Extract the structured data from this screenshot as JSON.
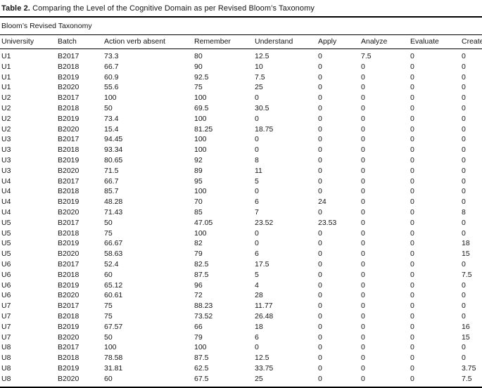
{
  "table": {
    "title_label": "Table 2.",
    "title_text": "Comparing the Level of the Cognitive Domain as per Revised Bloom’s Taxonomy",
    "spanner": "Bloom’s Revised Taxonomy",
    "columns": [
      "University",
      "Batch",
      "Action verb absent",
      "Remember",
      "Understand",
      "Apply",
      "Analyze",
      "Evaluate",
      "Create"
    ],
    "rows": [
      [
        "U1",
        "B2017",
        "73.3",
        "80",
        "12.5",
        "0",
        "7.5",
        "0",
        "0"
      ],
      [
        "U1",
        "B2018",
        "66.7",
        "90",
        "10",
        "0",
        "0",
        "0",
        "0"
      ],
      [
        "U1",
        "B2019",
        "60.9",
        "92.5",
        "7.5",
        "0",
        "0",
        "0",
        "0"
      ],
      [
        "U1",
        "B2020",
        "55.6",
        "75",
        "25",
        "0",
        "0",
        "0",
        "0"
      ],
      [
        "U2",
        "B2017",
        "100",
        "100",
        "0",
        "0",
        "0",
        "0",
        "0"
      ],
      [
        "U2",
        "B2018",
        "50",
        "69.5",
        "30.5",
        "0",
        "0",
        "0",
        "0"
      ],
      [
        "U2",
        "B2019",
        "73.4",
        "100",
        "0",
        "0",
        "0",
        "0",
        "0"
      ],
      [
        "U2",
        "B2020",
        "15.4",
        "81.25",
        "18.75",
        "0",
        "0",
        "0",
        "0"
      ],
      [
        "U3",
        "B2017",
        "94.45",
        "100",
        "0",
        "0",
        "0",
        "0",
        "0"
      ],
      [
        "U3",
        "B2018",
        "93.34",
        "100",
        "0",
        "0",
        "0",
        "0",
        "0"
      ],
      [
        "U3",
        "B2019",
        "80.65",
        "92",
        "8",
        "0",
        "0",
        "0",
        "0"
      ],
      [
        "U3",
        "B2020",
        "71.5",
        "89",
        "11",
        "0",
        "0",
        "0",
        "0"
      ],
      [
        "U4",
        "B2017",
        "66.7",
        "95",
        "5",
        "0",
        "0",
        "0",
        "0"
      ],
      [
        "U4",
        "B2018",
        "85.7",
        "100",
        "0",
        "0",
        "0",
        "0",
        "0"
      ],
      [
        "U4",
        "B2019",
        "48.28",
        "70",
        "6",
        "24",
        "0",
        "0",
        "0"
      ],
      [
        "U4",
        "B2020",
        "71.43",
        "85",
        "7",
        "0",
        "0",
        "0",
        "8"
      ],
      [
        "U5",
        "B2017",
        "50",
        "47.05",
        "23.52",
        "23.53",
        "0",
        "0",
        "0"
      ],
      [
        "U5",
        "B2018",
        "75",
        "100",
        "0",
        "0",
        "0",
        "0",
        "0"
      ],
      [
        "U5",
        "B2019",
        "66.67",
        "82",
        "0",
        "0",
        "0",
        "0",
        "18"
      ],
      [
        "U5",
        "B2020",
        "58.63",
        "79",
        "6",
        "0",
        "0",
        "0",
        "15"
      ],
      [
        "U6",
        "B2017",
        "52.4",
        "82.5",
        "17.5",
        "0",
        "0",
        "0",
        "0"
      ],
      [
        "U6",
        "B2018",
        "60",
        "87.5",
        "5",
        "0",
        "0",
        "0",
        "7.5"
      ],
      [
        "U6",
        "B2019",
        "65.12",
        "96",
        "4",
        "0",
        "0",
        "0",
        "0"
      ],
      [
        "U6",
        "B2020",
        "60.61",
        "72",
        "28",
        "0",
        "0",
        "0",
        "0"
      ],
      [
        "U7",
        "B2017",
        "75",
        "88.23",
        "11.77",
        "0",
        "0",
        "0",
        "0"
      ],
      [
        "U7",
        "B2018",
        "75",
        "73.52",
        "26.48",
        "0",
        "0",
        "0",
        "0"
      ],
      [
        "U7",
        "B2019",
        "67.57",
        "66",
        "18",
        "0",
        "0",
        "0",
        "16"
      ],
      [
        "U7",
        "B2020",
        "50",
        "79",
        "6",
        "0",
        "0",
        "0",
        "15"
      ],
      [
        "U8",
        "B2017",
        "100",
        "100",
        "0",
        "0",
        "0",
        "0",
        "0"
      ],
      [
        "U8",
        "B2018",
        "78.58",
        "87.5",
        "12.5",
        "0",
        "0",
        "0",
        "0"
      ],
      [
        "U8",
        "B2019",
        "31.81",
        "62.5",
        "33.75",
        "0",
        "0",
        "0",
        "3.75"
      ],
      [
        "U8",
        "B2020",
        "60",
        "67.5",
        "25",
        "0",
        "0",
        "0",
        "7.5"
      ]
    ]
  }
}
